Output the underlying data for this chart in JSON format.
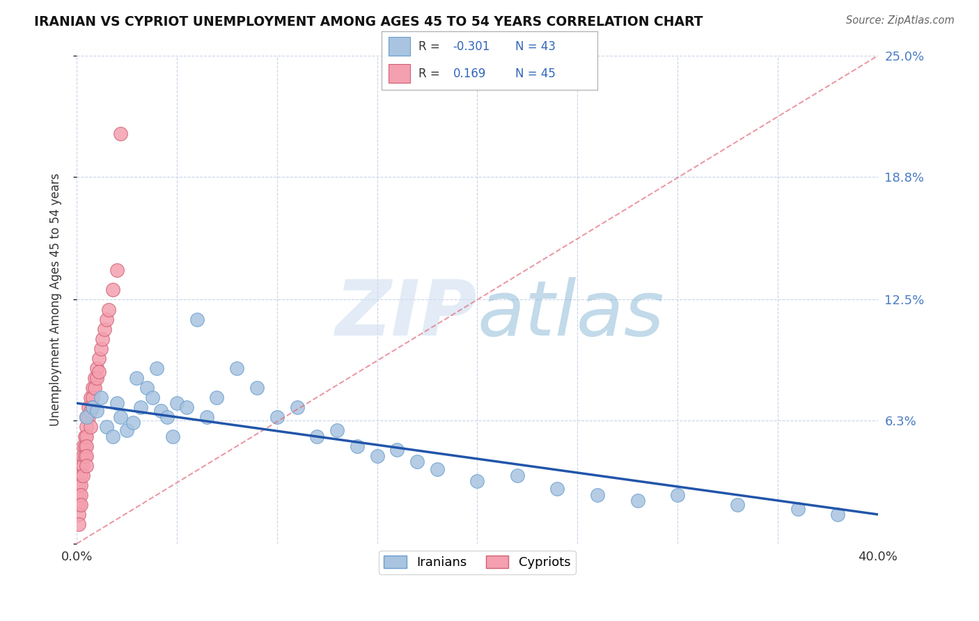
{
  "title": "IRANIAN VS CYPRIOT UNEMPLOYMENT AMONG AGES 45 TO 54 YEARS CORRELATION CHART",
  "source": "Source: ZipAtlas.com",
  "ylabel": "Unemployment Among Ages 45 to 54 years",
  "xlim": [
    0.0,
    0.4
  ],
  "ylim": [
    0.0,
    0.25
  ],
  "xtick_positions": [
    0.0,
    0.05,
    0.1,
    0.15,
    0.2,
    0.25,
    0.3,
    0.35,
    0.4
  ],
  "xticklabels": [
    "0.0%",
    "",
    "",
    "",
    "",
    "",
    "",
    "",
    "40.0%"
  ],
  "ytick_positions": [
    0.0,
    0.063,
    0.125,
    0.188,
    0.25
  ],
  "yticklabels_right": [
    "",
    "6.3%",
    "12.5%",
    "18.8%",
    "25.0%"
  ],
  "iranian_color": "#a8c4e0",
  "iranian_edge": "#6a9ecf",
  "cypriot_color": "#f4a0b0",
  "cypriot_edge": "#d06070",
  "trend_iranian_color": "#2255aa",
  "trend_cypriot_color": "#e07080",
  "background_color": "#ffffff",
  "grid_color": "#c8d4e8",
  "iranian_x": [
    0.005,
    0.008,
    0.01,
    0.012,
    0.015,
    0.018,
    0.02,
    0.022,
    0.025,
    0.028,
    0.03,
    0.032,
    0.035,
    0.038,
    0.04,
    0.042,
    0.045,
    0.048,
    0.05,
    0.055,
    0.06,
    0.065,
    0.07,
    0.08,
    0.09,
    0.1,
    0.11,
    0.12,
    0.13,
    0.14,
    0.15,
    0.16,
    0.17,
    0.18,
    0.2,
    0.22,
    0.24,
    0.26,
    0.28,
    0.3,
    0.33,
    0.36,
    0.38
  ],
  "iranian_y": [
    0.065,
    0.07,
    0.068,
    0.075,
    0.06,
    0.055,
    0.072,
    0.065,
    0.058,
    0.062,
    0.085,
    0.07,
    0.08,
    0.075,
    0.09,
    0.068,
    0.065,
    0.055,
    0.072,
    0.07,
    0.115,
    0.065,
    0.075,
    0.09,
    0.08,
    0.065,
    0.07,
    0.055,
    0.058,
    0.05,
    0.045,
    0.048,
    0.042,
    0.038,
    0.032,
    0.035,
    0.028,
    0.025,
    0.022,
    0.025,
    0.02,
    0.018,
    0.015
  ],
  "cypriot_x": [
    0.001,
    0.001,
    0.001,
    0.001,
    0.001,
    0.002,
    0.002,
    0.002,
    0.002,
    0.002,
    0.003,
    0.003,
    0.003,
    0.003,
    0.004,
    0.004,
    0.004,
    0.005,
    0.005,
    0.005,
    0.005,
    0.005,
    0.005,
    0.006,
    0.006,
    0.007,
    0.007,
    0.007,
    0.008,
    0.008,
    0.008,
    0.009,
    0.009,
    0.01,
    0.01,
    0.011,
    0.011,
    0.012,
    0.013,
    0.014,
    0.015,
    0.016,
    0.018,
    0.02,
    0.022
  ],
  "cypriot_y": [
    0.03,
    0.025,
    0.02,
    0.015,
    0.01,
    0.04,
    0.035,
    0.03,
    0.025,
    0.02,
    0.05,
    0.045,
    0.04,
    0.035,
    0.055,
    0.05,
    0.045,
    0.065,
    0.06,
    0.055,
    0.05,
    0.045,
    0.04,
    0.07,
    0.065,
    0.075,
    0.068,
    0.06,
    0.08,
    0.075,
    0.07,
    0.085,
    0.08,
    0.09,
    0.085,
    0.095,
    0.088,
    0.1,
    0.105,
    0.11,
    0.115,
    0.12,
    0.13,
    0.14,
    0.21
  ],
  "cypriot_trend_x0": 0.0,
  "cypriot_trend_y0": 0.0,
  "cypriot_trend_x1": 0.4,
  "cypriot_trend_y1": 0.25,
  "iranian_trend_x0": 0.0,
  "iranian_trend_y0": 0.072,
  "iranian_trend_x1": 0.4,
  "iranian_trend_y1": 0.015
}
